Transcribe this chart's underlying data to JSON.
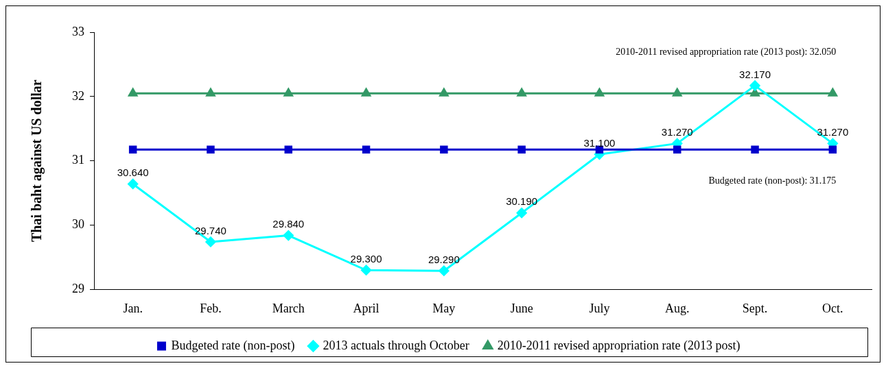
{
  "chart_data": {
    "type": "line",
    "categories": [
      "Jan.",
      "Feb.",
      "March",
      "April",
      "May",
      "June",
      "July",
      "Aug.",
      "Sept.",
      "Oct."
    ],
    "ylabel": "Thai baht against US dollar",
    "ylim": [
      29,
      33
    ],
    "yticks": [
      29,
      30,
      31,
      32,
      33
    ],
    "grid": false,
    "legend": "bottom",
    "series": [
      {
        "name": "Budgeted rate (non-post)",
        "color": "#0000cc",
        "marker": "square",
        "values": [
          31.175,
          31.175,
          31.175,
          31.175,
          31.175,
          31.175,
          31.175,
          31.175,
          31.175,
          31.175
        ]
      },
      {
        "name": "2013 actuals through October",
        "color": "#00ffff",
        "marker": "diamond",
        "values": [
          30.64,
          29.74,
          29.84,
          29.3,
          29.29,
          30.19,
          31.1,
          31.27,
          32.17,
          31.27
        ],
        "value_labels": [
          "30.640",
          "29.740",
          "29.840",
          "29.300",
          "29.290",
          "30.190",
          "31.100",
          "31.270",
          "32.170",
          "31.270"
        ]
      },
      {
        "name": "2010-2011 revised appropriation rate (2013 post)",
        "color": "#339966",
        "marker": "triangle",
        "values": [
          32.05,
          32.05,
          32.05,
          32.05,
          32.05,
          32.05,
          32.05,
          32.05,
          32.05,
          32.05
        ]
      }
    ],
    "annotations": [
      "2010-2011 revised appropriation rate (2013 post): 32.050",
      "Budgeted rate (non-post): 31.175"
    ]
  }
}
